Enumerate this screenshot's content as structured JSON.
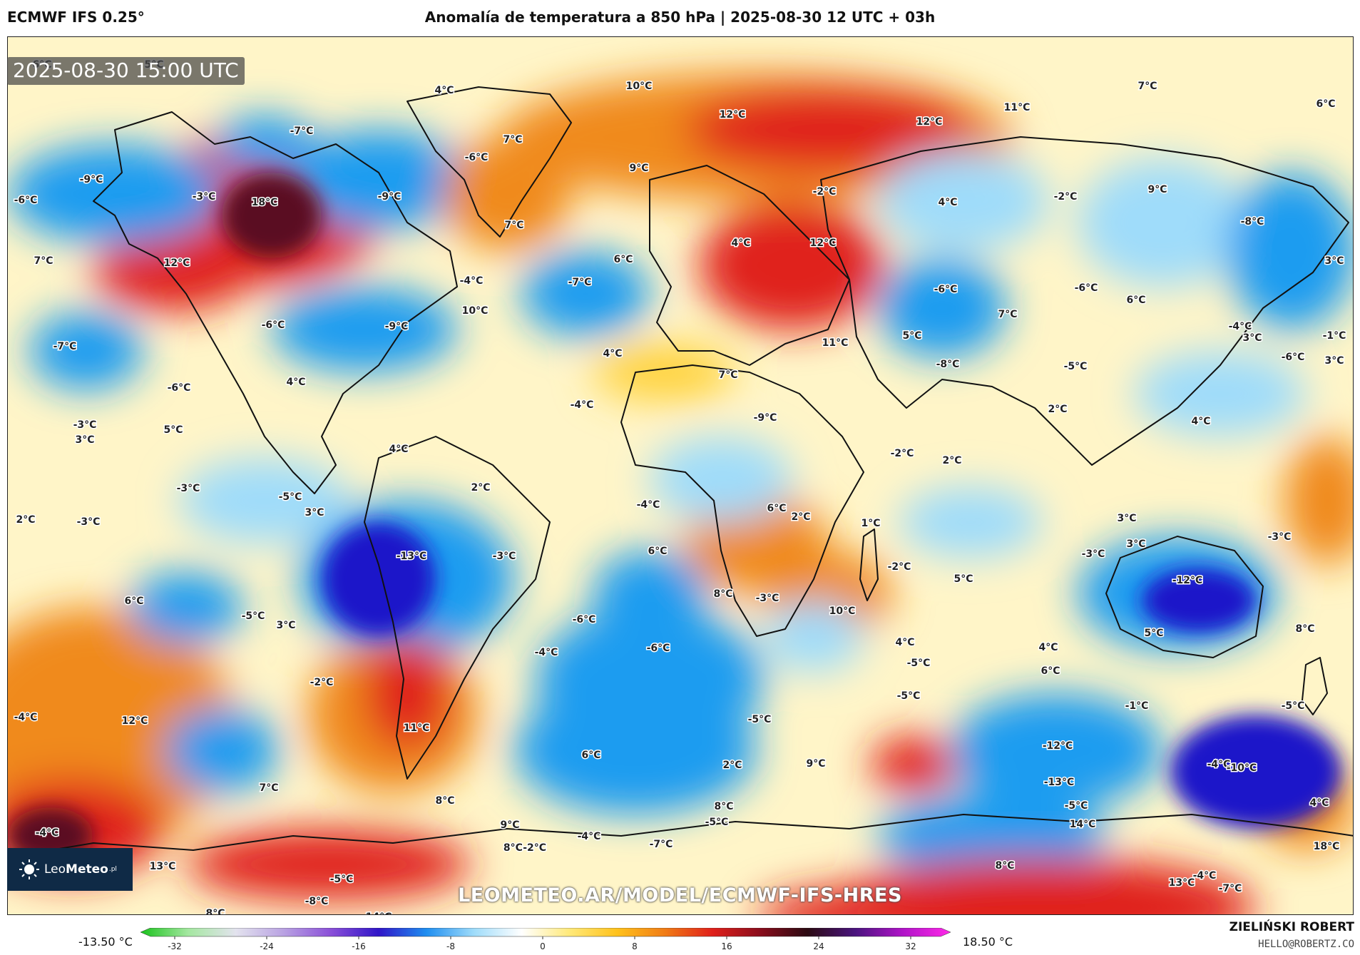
{
  "header": {
    "model": "ECMWF IFS 0.25°",
    "title": "Anomalía de temperatura a 850 hPa | 2025-08-30 12 UTC + 03h"
  },
  "map": {
    "valid_time": "2025-08-30 15:00 UTC",
    "watermark": "LEOMETEO.AR/MODEL/ECMWF-IFS-HRES",
    "colors": {
      "cold_extreme": "#1f12c9",
      "cold": "#1f9cf0",
      "cool": "#9fdcfa",
      "neutral": "#ffffff",
      "warm": "#ffd23a",
      "hot": "#f08a1a",
      "very_hot": "#e0201b",
      "extreme_hot": "#5a0a22"
    },
    "labels": [
      {
        "text": "6°C"
      },
      {
        "text": "5°C"
      },
      {
        "text": "4°C"
      },
      {
        "text": "-7°C"
      },
      {
        "text": "-6°C"
      },
      {
        "text": "10°C"
      },
      {
        "text": "12°C"
      },
      {
        "text": "11°C"
      },
      {
        "text": "12°C"
      },
      {
        "text": "7°C"
      },
      {
        "text": "6°C"
      },
      {
        "text": "-9°C"
      },
      {
        "text": "-6°C"
      },
      {
        "text": "-3°C"
      },
      {
        "text": "18°C"
      },
      {
        "text": "-9°C"
      },
      {
        "text": "7°C"
      },
      {
        "text": "9°C"
      },
      {
        "text": "-2°C"
      },
      {
        "text": "4°C"
      },
      {
        "text": "-2°C"
      },
      {
        "text": "9°C"
      },
      {
        "text": "-8°C"
      },
      {
        "text": "7°C"
      },
      {
        "text": "12°C"
      },
      {
        "text": "7°C"
      },
      {
        "text": "6°C"
      },
      {
        "text": "4°C"
      },
      {
        "text": "12°C"
      },
      {
        "text": "3°C"
      },
      {
        "text": "-7°C"
      },
      {
        "text": "-6°C"
      },
      {
        "text": "-6°C"
      },
      {
        "text": "6°C"
      },
      {
        "text": "-4°C"
      },
      {
        "text": "10°C"
      },
      {
        "text": "-6°C"
      },
      {
        "text": "-9°C"
      },
      {
        "text": "-4°C"
      },
      {
        "text": "-1°C"
      },
      {
        "text": "11°C"
      },
      {
        "text": "7°C"
      },
      {
        "text": "3°C"
      },
      {
        "text": "-6°C"
      },
      {
        "text": "-7°C"
      },
      {
        "text": "4°C"
      },
      {
        "text": "5°C"
      },
      {
        "text": "-8°C"
      },
      {
        "text": "3°C"
      },
      {
        "text": "7°C"
      },
      {
        "text": "-5°C"
      },
      {
        "text": "4°C"
      },
      {
        "text": "-6°C"
      },
      {
        "text": "-4°C"
      },
      {
        "text": "-9°C"
      },
      {
        "text": "2°C"
      },
      {
        "text": "4°C"
      },
      {
        "text": "-3°C"
      },
      {
        "text": "5°C"
      },
      {
        "text": "3°C"
      },
      {
        "text": "4°C"
      },
      {
        "text": "-2°C"
      },
      {
        "text": "2°C"
      },
      {
        "text": "-3°C"
      },
      {
        "text": "-5°C"
      },
      {
        "text": "2°C"
      },
      {
        "text": "-4°C"
      },
      {
        "text": "6°C"
      },
      {
        "text": "2°C"
      },
      {
        "text": "1°C"
      },
      {
        "text": "3°C"
      },
      {
        "text": "2°C"
      },
      {
        "text": "3°C"
      },
      {
        "text": "-3°C"
      },
      {
        "text": "-3°C"
      },
      {
        "text": "3°C"
      },
      {
        "text": "-13°C"
      },
      {
        "text": "-3°C"
      },
      {
        "text": "6°C"
      },
      {
        "text": "-3°C"
      },
      {
        "text": "-2°C"
      },
      {
        "text": "5°C"
      },
      {
        "text": "-12°C"
      },
      {
        "text": "6°C"
      },
      {
        "text": "-5°C"
      },
      {
        "text": "3°C"
      },
      {
        "text": "8°C"
      },
      {
        "text": "8°C"
      },
      {
        "text": "-3°C"
      },
      {
        "text": "10°C"
      },
      {
        "text": "-6°C"
      },
      {
        "text": "5°C"
      },
      {
        "text": "-6°C"
      },
      {
        "text": "4°C"
      },
      {
        "text": "4°C"
      },
      {
        "text": "-4°C"
      },
      {
        "text": "-5°C"
      },
      {
        "text": "6°C"
      },
      {
        "text": "-2°C"
      },
      {
        "text": "-5°C"
      },
      {
        "text": "-1°C"
      },
      {
        "text": "-5°C"
      },
      {
        "text": "-4°C"
      },
      {
        "text": "12°C"
      },
      {
        "text": "11°C"
      },
      {
        "text": "-5°C"
      },
      {
        "text": "-12°C"
      },
      {
        "text": "-4°C"
      },
      {
        "text": "2°C"
      },
      {
        "text": "6°C"
      },
      {
        "text": "9°C"
      },
      {
        "text": "-10°C"
      },
      {
        "text": "-13°C"
      },
      {
        "text": "7°C"
      },
      {
        "text": "8°C"
      },
      {
        "text": "8°C"
      },
      {
        "text": "-5°C"
      },
      {
        "text": "4°C"
      },
      {
        "text": "-5°C"
      },
      {
        "text": "14°C"
      },
      {
        "text": "18°C"
      },
      {
        "text": "-4°C"
      },
      {
        "text": "9°C"
      },
      {
        "text": "-4°C"
      },
      {
        "text": "-7°C"
      },
      {
        "text": "8°C"
      },
      {
        "text": "13°C"
      },
      {
        "text": "-5°C"
      },
      {
        "text": "13°C"
      },
      {
        "text": "8°C-2°C"
      },
      {
        "text": "-4°C"
      },
      {
        "text": "-8°C"
      },
      {
        "text": "-7°C"
      },
      {
        "text": "14°C"
      },
      {
        "text": "13°C"
      },
      {
        "text": "10°C"
      },
      {
        "text": "8°C"
      }
    ]
  },
  "logo": {
    "brand_light": "Leo",
    "brand_bold": "Meteo",
    "suffix": ".pl"
  },
  "legend": {
    "min_label": "-13.50 °C",
    "max_label": "18.50 °C",
    "ticks": [
      "-32",
      "-24",
      "-16",
      "-8",
      "0",
      "8",
      "16",
      "24",
      "32"
    ],
    "stops": [
      "#19c21b",
      "#a4e7a0",
      "#e3e3ee",
      "#b9a2e2",
      "#8a4fd8",
      "#3015c8",
      "#1f8ef0",
      "#9fdcfa",
      "#ffffff",
      "#ffe97a",
      "#ffc21c",
      "#f07c15",
      "#e0201b",
      "#8a0d1c",
      "#2b0a12",
      "#4a147e",
      "#b014c8",
      "#ff28e8"
    ]
  },
  "credits": {
    "author": "ZIELIŃSKI ROBERT",
    "email": "HELLO@ROBERTZ.CO"
  }
}
